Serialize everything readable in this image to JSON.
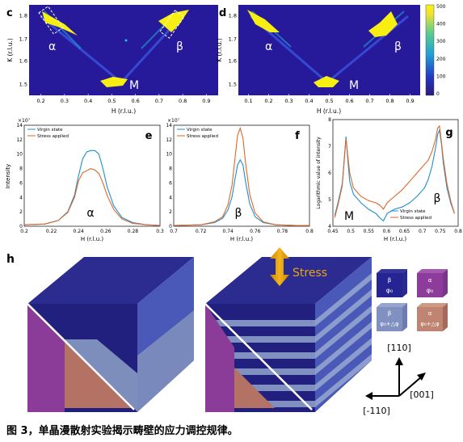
{
  "colorbar": {
    "ticks": [
      "500",
      "400",
      "300",
      "200",
      "100",
      "0"
    ],
    "vmin": 0,
    "vmax": 500
  },
  "panels": {
    "c": {
      "label": "c",
      "xlabel": "H (r.l.u.)",
      "ylabel": "K (r.l.u.)",
      "xticks": [
        "0.2",
        "0.3",
        "0.4",
        "0.5",
        "0.6",
        "0.7",
        "0.8",
        "0.9"
      ],
      "yticks": [
        "1.8",
        "1.7",
        "1.6",
        "1.5"
      ],
      "spots": [
        "α",
        "β",
        "M"
      ]
    },
    "d": {
      "label": "d",
      "xlabel": "H (r.l.u.)",
      "ylabel": "K (r.l.u.)",
      "xticks": [
        "0.1",
        "0.2",
        "0.3",
        "0.4",
        "0.5",
        "0.6",
        "0.7",
        "0.8",
        "0.9"
      ],
      "yticks": [
        "1.8",
        "1.7",
        "1.6",
        "1.5"
      ],
      "spots": [
        "α",
        "β",
        "M"
      ]
    },
    "e": {
      "label": "e",
      "xlabel": "H (r.l.u.)",
      "ylabel": "Intensity",
      "peak": "α",
      "exponent": "×10⁷",
      "xticks": [
        "0.2",
        "0.22",
        "0.24",
        "0.26",
        "0.28",
        "0.3"
      ],
      "yticks": [
        "14",
        "12",
        "10",
        "8",
        "6",
        "4",
        "2",
        "0"
      ]
    },
    "f": {
      "label": "f",
      "xlabel": "H (r.l.u.)",
      "peak": "β",
      "exponent": "×10⁷",
      "xticks": [
        "0.7",
        "0.72",
        "0.74",
        "0.76",
        "0.78",
        "0.8"
      ],
      "yticks": [
        "14",
        "12",
        "10",
        "8",
        "6",
        "4",
        "2",
        "0"
      ]
    },
    "g": {
      "label": "g",
      "xlabel": "H (r.l.u.)",
      "ylabel": "Logarithmic value of intensity",
      "peak_left": "M",
      "peak_right": "β",
      "xticks": [
        "0.45",
        "0.5",
        "0.55",
        "0.6",
        "0.65",
        "0.7",
        "0.75",
        "0.8"
      ],
      "yticks": [
        "8",
        "7",
        "6",
        "5",
        "4"
      ]
    },
    "h": {
      "label": "h",
      "stress_label": "Stress",
      "legend": [
        {
          "phase": "β",
          "angle": "φ₀"
        },
        {
          "phase": "α",
          "angle": "φ₀"
        },
        {
          "phase": "β",
          "angle": "φ₀+△φ"
        },
        {
          "phase": "α",
          "angle": "φ₀+△φ"
        }
      ],
      "axes": {
        "up": "[110]",
        "right": "[001]",
        "left": "[-110]"
      }
    }
  },
  "legend_labels": {
    "virgin": "Virgin state",
    "stress": "Stress applied"
  },
  "series_colors": {
    "virgin": "#1f8fc9",
    "stress": "#e0662b"
  },
  "chart_data": [
    {
      "type": "heatmap",
      "panel": "c",
      "xlim": [
        0.17,
        0.93
      ],
      "ylim": [
        1.46,
        1.83
      ],
      "xlabel": "H (r.l.u.)",
      "ylabel": "K (r.l.u.)",
      "peaks": [
        {
          "label": "α",
          "h": 0.24,
          "k": 1.78
        },
        {
          "label": "β",
          "h": 0.76,
          "k": 1.78
        },
        {
          "label": "M",
          "h": 0.5,
          "k": 1.5
        }
      ]
    },
    {
      "type": "heatmap",
      "panel": "d",
      "xlim": [
        0.1,
        0.93
      ],
      "ylim": [
        1.46,
        1.83
      ],
      "xlabel": "H (r.l.u.)",
      "ylabel": "K (r.l.u.)",
      "peaks": [
        {
          "label": "α",
          "h": 0.23,
          "k": 1.78
        },
        {
          "label": "β",
          "h": 0.74,
          "k": 1.76
        },
        {
          "label": "M",
          "h": 0.49,
          "k": 1.49
        }
      ]
    },
    {
      "type": "line",
      "panel": "e",
      "xlim": [
        0.2,
        0.3
      ],
      "ylim": [
        0,
        14
      ],
      "x": [
        0.2,
        0.215,
        0.225,
        0.232,
        0.237,
        0.24,
        0.243,
        0.246,
        0.249,
        0.252,
        0.255,
        0.258,
        0.261,
        0.266,
        0.272,
        0.28,
        0.29,
        0.3
      ],
      "series": [
        {
          "name": "Virgin state",
          "key": "virgin",
          "values": [
            0.2,
            0.3,
            0.8,
            2.0,
            4.3,
            7.0,
            9.3,
            10.3,
            10.5,
            10.5,
            10.0,
            8.0,
            5.5,
            2.8,
            1.2,
            0.5,
            0.2,
            0.1
          ]
        },
        {
          "name": "Stress applied",
          "key": "stress",
          "values": [
            0.2,
            0.3,
            0.8,
            1.9,
            4.0,
            6.3,
            7.4,
            7.7,
            8.0,
            7.8,
            7.3,
            6.0,
            4.3,
            2.3,
            1.0,
            0.4,
            0.2,
            0.1
          ]
        }
      ]
    },
    {
      "type": "line",
      "panel": "f",
      "xlim": [
        0.7,
        0.8
      ],
      "ylim": [
        0,
        14
      ],
      "x": [
        0.7,
        0.72,
        0.73,
        0.736,
        0.74,
        0.743,
        0.745,
        0.747,
        0.749,
        0.751,
        0.753,
        0.756,
        0.76,
        0.766,
        0.775,
        0.79,
        0.8
      ],
      "series": [
        {
          "name": "Virgin state",
          "key": "virgin",
          "values": [
            0.1,
            0.2,
            0.5,
            1.1,
            2.3,
            4.1,
            6.4,
            8.5,
            9.2,
            8.5,
            6.1,
            3.1,
            1.3,
            0.5,
            0.2,
            0.1,
            0.1
          ]
        },
        {
          "name": "Stress applied",
          "key": "stress",
          "values": [
            0.1,
            0.2,
            0.6,
            1.3,
            3.0,
            5.7,
            9.2,
            12.6,
            13.6,
            12.2,
            8.7,
            4.4,
            1.8,
            0.6,
            0.2,
            0.1,
            0.1
          ]
        }
      ]
    },
    {
      "type": "line",
      "panel": "g",
      "xlim": [
        0.465,
        0.8
      ],
      "ylim": [
        3.5,
        8.5
      ],
      "x": [
        0.47,
        0.48,
        0.49,
        0.495,
        0.5,
        0.505,
        0.51,
        0.52,
        0.54,
        0.56,
        0.58,
        0.59,
        0.6,
        0.61,
        0.63,
        0.65,
        0.67,
        0.69,
        0.71,
        0.72,
        0.73,
        0.74,
        0.745,
        0.75,
        0.755,
        0.76,
        0.77,
        0.78,
        0.79
      ],
      "series": [
        {
          "name": "Virgin state",
          "key": "virgin",
          "values": [
            4.0,
            4.7,
            5.5,
            6.6,
            7.7,
            6.6,
            5.6,
            5.0,
            4.6,
            4.3,
            4.1,
            3.9,
            3.75,
            4.1,
            4.3,
            4.4,
            4.6,
            4.9,
            5.3,
            5.7,
            6.3,
            7.2,
            7.8,
            8.0,
            7.4,
            6.5,
            5.3,
            4.6,
            4.1
          ]
        },
        {
          "name": "Stress applied",
          "key": "stress",
          "values": [
            3.9,
            4.6,
            5.4,
            6.5,
            7.6,
            6.8,
            6.0,
            5.3,
            4.9,
            4.7,
            4.6,
            4.5,
            4.3,
            4.6,
            4.9,
            5.2,
            5.6,
            6.0,
            6.4,
            6.6,
            7.0,
            7.6,
            8.1,
            8.2,
            7.5,
            6.7,
            5.5,
            4.7,
            4.1
          ]
        }
      ]
    }
  ],
  "caption": "图 3，单晶漫散射实验揭示畴壁的应力调控规律。"
}
